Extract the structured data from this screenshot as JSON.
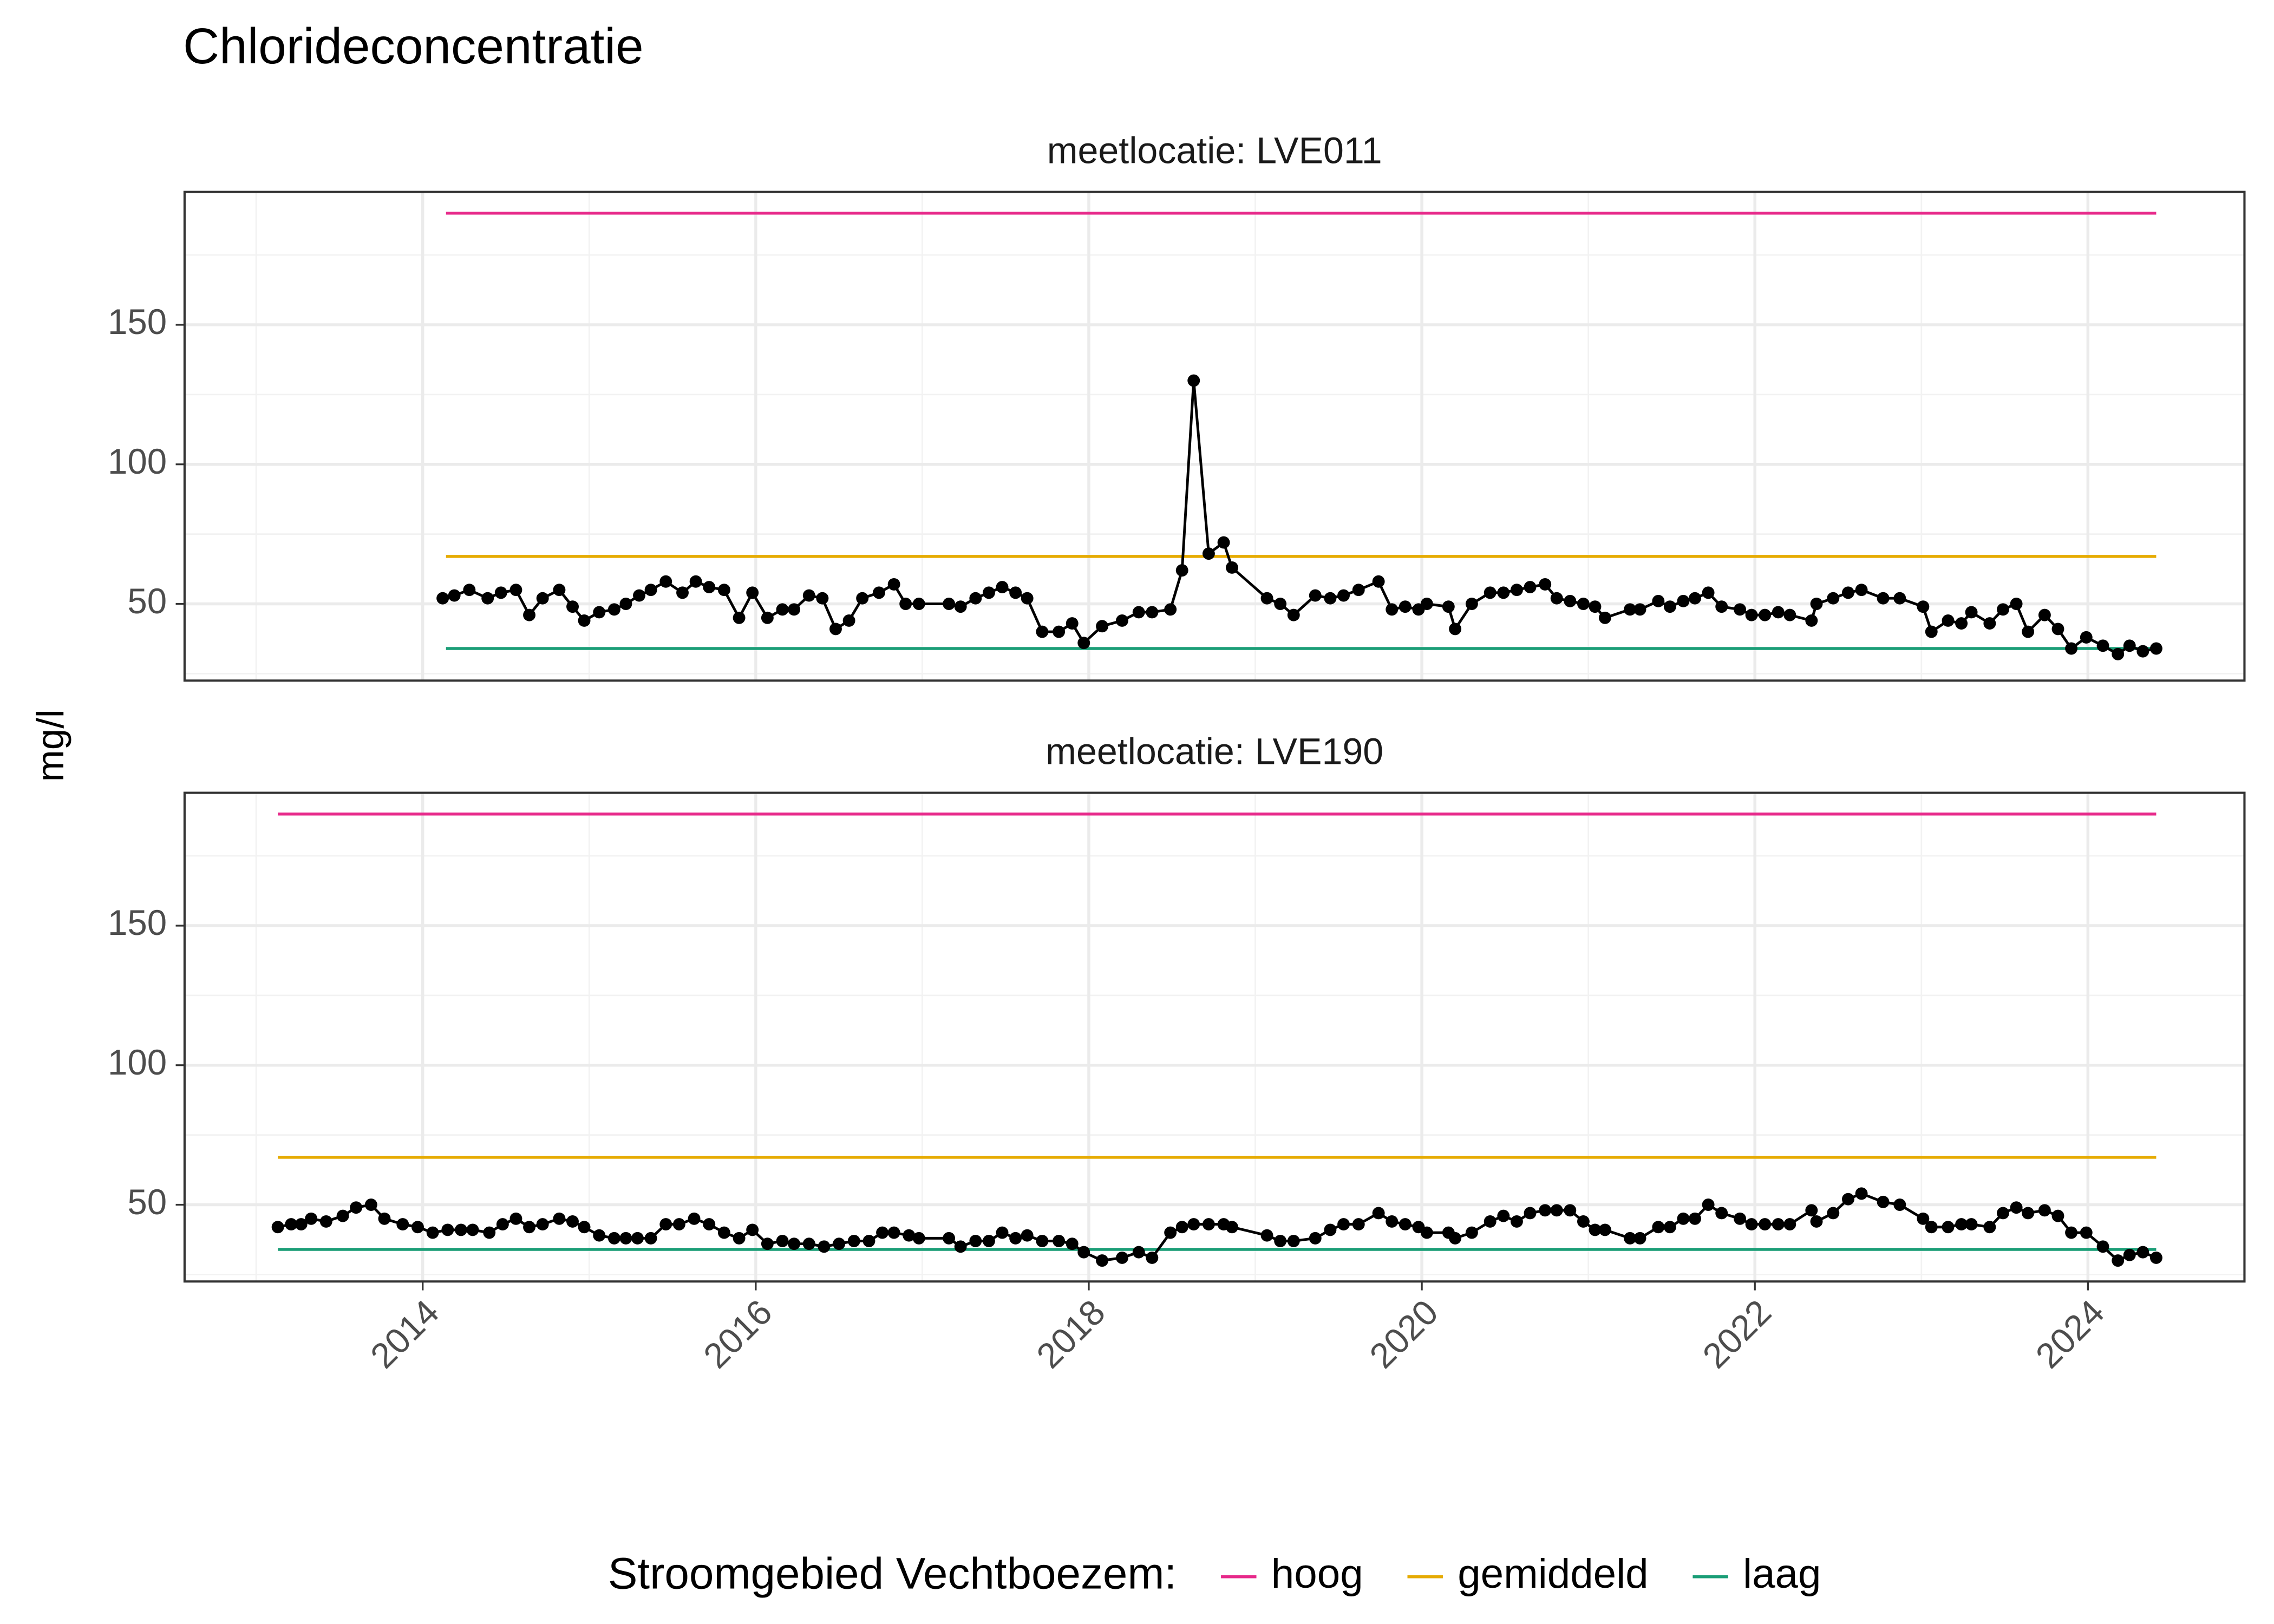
{
  "title": "Chlorideconcentratie",
  "ylabel": "mg/l",
  "legend_title": "Stroomgebied Vechtboezem:",
  "chart_data": [
    {
      "type": "line",
      "subtitle": "meetlocatie: LVE011",
      "color": "#000000",
      "grid": true,
      "xlim": [
        2012.57,
        2024.94
      ],
      "xticks": [
        2014,
        2016,
        2018,
        2020,
        2022,
        2024
      ],
      "minor_xticks": [
        2013,
        2015,
        2017,
        2019,
        2021,
        2023
      ],
      "ylim": [
        22.5,
        197.6
      ],
      "yticks": [
        50,
        100,
        150
      ],
      "minor_yticks": [
        25,
        75,
        125,
        175
      ],
      "x": [
        2014.12,
        2014.19,
        2014.28,
        2014.39,
        2014.47,
        2014.56,
        2014.64,
        2014.72,
        2014.82,
        2014.9,
        2014.97,
        2015.06,
        2015.15,
        2015.22,
        2015.3,
        2015.37,
        2015.46,
        2015.56,
        2015.64,
        2015.72,
        2015.81,
        2015.9,
        2015.98,
        2016.07,
        2016.16,
        2016.23,
        2016.32,
        2016.4,
        2016.48,
        2016.56,
        2016.64,
        2016.74,
        2016.83,
        2016.9,
        2016.98,
        2017.16,
        2017.23,
        2017.32,
        2017.4,
        2017.48,
        2017.56,
        2017.63,
        2017.72,
        2017.82,
        2017.9,
        2017.97,
        2018.08,
        2018.2,
        2018.3,
        2018.38,
        2018.49,
        2018.56,
        2018.63,
        2018.72,
        2018.81,
        2018.86,
        2019.07,
        2019.15,
        2019.23,
        2019.36,
        2019.45,
        2019.53,
        2019.62,
        2019.74,
        2019.82,
        2019.9,
        2019.98,
        2020.03,
        2020.16,
        2020.2,
        2020.3,
        2020.41,
        2020.49,
        2020.57,
        2020.65,
        2020.74,
        2020.81,
        2020.89,
        2020.97,
        2021.04,
        2021.1,
        2021.25,
        2021.31,
        2021.42,
        2021.49,
        2021.57,
        2021.64,
        2021.72,
        2021.8,
        2021.91,
        2021.98,
        2022.06,
        2022.14,
        2022.21,
        2022.34,
        2022.37,
        2022.47,
        2022.56,
        2022.64,
        2022.77,
        2022.87,
        2023.01,
        2023.06,
        2023.16,
        2023.24,
        2023.3,
        2023.41,
        2023.49,
        2023.57,
        2023.64,
        2023.74,
        2023.82,
        2023.9,
        2023.99,
        2024.09,
        2024.18,
        2024.25,
        2024.33,
        2024.41
      ],
      "values": [
        52,
        53,
        55,
        52,
        54,
        55,
        46,
        52,
        55,
        49,
        44,
        47,
        48,
        50,
        53,
        55,
        58,
        54,
        58,
        56,
        55,
        45,
        54,
        45,
        48,
        48,
        53,
        52,
        41,
        44,
        52,
        54,
        57,
        50,
        50,
        50,
        49,
        52,
        54,
        56,
        54,
        52,
        40,
        40,
        43,
        36,
        42,
        44,
        47,
        47,
        48,
        62,
        130,
        68,
        72,
        63,
        52,
        50,
        46,
        53,
        52,
        53,
        55,
        58,
        48,
        49,
        48,
        50,
        49,
        41,
        50,
        54,
        54,
        55,
        56,
        57,
        52,
        51,
        50,
        49,
        45,
        48,
        48,
        51,
        49,
        51,
        52,
        54,
        49,
        48,
        46,
        46,
        47,
        46,
        44,
        50,
        52,
        54,
        55,
        52,
        52,
        49,
        40,
        44,
        43,
        47,
        43,
        48,
        50,
        40,
        46,
        41,
        34,
        38,
        35,
        32,
        35,
        33,
        34
      ],
      "series": [
        {
          "name": "hoog",
          "color": "#e7298a",
          "x": [
            2014.14,
            2024.41
          ],
          "values": [
            190,
            190
          ]
        },
        {
          "name": "gemiddeld",
          "color": "#e6ab02",
          "x": [
            2014.14,
            2024.41
          ],
          "values": [
            67,
            67
          ]
        },
        {
          "name": "laag",
          "color": "#1b9e77",
          "x": [
            2014.14,
            2024.41
          ],
          "values": [
            34,
            34
          ]
        }
      ]
    },
    {
      "type": "line",
      "subtitle": "meetlocatie: LVE190",
      "color": "#000000",
      "grid": true,
      "xlim": [
        2012.57,
        2024.94
      ],
      "xticks": [
        2014,
        2016,
        2018,
        2020,
        2022,
        2024
      ],
      "minor_xticks": [
        2013,
        2015,
        2017,
        2019,
        2021,
        2023
      ],
      "ylim": [
        22.5,
        197.6
      ],
      "yticks": [
        50,
        100,
        150
      ],
      "minor_yticks": [
        25,
        75,
        125,
        175
      ],
      "x": [
        2013.13,
        2013.21,
        2013.27,
        2013.33,
        2013.42,
        2013.52,
        2013.6,
        2013.69,
        2013.77,
        2013.88,
        2013.97,
        2014.06,
        2014.15,
        2014.23,
        2014.3,
        2014.4,
        2014.48,
        2014.56,
        2014.64,
        2014.72,
        2014.82,
        2014.9,
        2014.97,
        2015.06,
        2015.15,
        2015.22,
        2015.29,
        2015.37,
        2015.46,
        2015.54,
        2015.63,
        2015.72,
        2015.81,
        2015.9,
        2015.98,
        2016.07,
        2016.16,
        2016.23,
        2016.32,
        2016.41,
        2016.5,
        2016.59,
        2016.68,
        2016.76,
        2016.83,
        2016.92,
        2016.98,
        2017.16,
        2017.23,
        2017.32,
        2017.4,
        2017.48,
        2017.56,
        2017.63,
        2017.72,
        2017.82,
        2017.9,
        2017.97,
        2018.08,
        2018.2,
        2018.3,
        2018.38,
        2018.49,
        2018.56,
        2018.63,
        2018.72,
        2018.81,
        2018.86,
        2019.07,
        2019.15,
        2019.23,
        2019.36,
        2019.45,
        2019.53,
        2019.62,
        2019.74,
        2019.82,
        2019.9,
        2019.98,
        2020.03,
        2020.16,
        2020.2,
        2020.3,
        2020.41,
        2020.49,
        2020.57,
        2020.65,
        2020.74,
        2020.81,
        2020.89,
        2020.97,
        2021.04,
        2021.1,
        2021.25,
        2021.31,
        2021.42,
        2021.49,
        2021.57,
        2021.64,
        2021.72,
        2021.8,
        2021.91,
        2021.98,
        2022.06,
        2022.14,
        2022.21,
        2022.34,
        2022.37,
        2022.47,
        2022.56,
        2022.64,
        2022.77,
        2022.87,
        2023.01,
        2023.06,
        2023.16,
        2023.24,
        2023.3,
        2023.41,
        2023.49,
        2023.57,
        2023.64,
        2023.74,
        2023.82,
        2023.9,
        2023.99,
        2024.09,
        2024.18,
        2024.25,
        2024.33,
        2024.41
      ],
      "values": [
        42,
        43,
        43,
        45,
        44,
        46,
        49,
        50,
        45,
        43,
        42,
        40,
        41,
        41,
        41,
        40,
        43,
        45,
        42,
        43,
        45,
        44,
        42,
        39,
        38,
        38,
        38,
        38,
        43,
        43,
        45,
        43,
        40,
        38,
        41,
        36,
        37,
        36,
        36,
        35,
        36,
        37,
        37,
        40,
        40,
        39,
        38,
        38,
        35,
        37,
        37,
        40,
        38,
        39,
        37,
        37,
        36,
        33,
        30,
        31,
        33,
        31,
        40,
        42,
        43,
        43,
        43,
        42,
        39,
        37,
        37,
        38,
        41,
        43,
        43,
        47,
        44,
        43,
        42,
        40,
        40,
        38,
        40,
        44,
        46,
        44,
        47,
        48,
        48,
        48,
        44,
        41,
        41,
        38,
        38,
        42,
        42,
        45,
        45,
        50,
        47,
        45,
        43,
        43,
        43,
        43,
        48,
        44,
        47,
        52,
        54,
        51,
        50,
        45,
        42,
        42,
        43,
        43,
        42,
        47,
        49,
        47,
        48,
        46,
        40,
        40,
        35,
        30,
        32,
        33,
        31
      ],
      "series": [
        {
          "name": "hoog",
          "color": "#e7298a",
          "x": [
            2013.13,
            2024.41
          ],
          "values": [
            190,
            190
          ]
        },
        {
          "name": "gemiddeld",
          "color": "#e6ab02",
          "x": [
            2013.13,
            2024.41
          ],
          "values": [
            67,
            67
          ]
        },
        {
          "name": "laag",
          "color": "#1b9e77",
          "x": [
            2013.13,
            2024.41
          ],
          "values": [
            34,
            34
          ]
        }
      ]
    }
  ]
}
